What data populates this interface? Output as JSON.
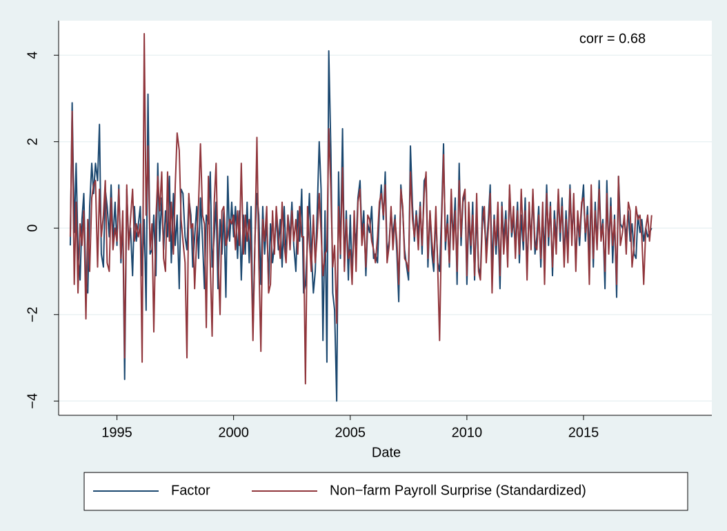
{
  "chart_data": {
    "type": "line",
    "annotation": "corr = 0.68",
    "xlabel": "Date",
    "xlim": [
      1992.5,
      2020.5
    ],
    "ylim": [
      -4.33,
      4.8
    ],
    "xticks": [
      1995,
      2000,
      2005,
      2010,
      2015
    ],
    "yticks": [
      {
        "value": -4,
        "label": "−4"
      },
      {
        "value": -2,
        "label": "−2"
      },
      0,
      2,
      4
    ],
    "grid": true,
    "legend": "bottom",
    "x": [
      1993,
      1993.08,
      1993.17,
      1993.25,
      1993.33,
      1993.42,
      1993.5,
      1993.58,
      1993.67,
      1993.75,
      1993.83,
      1993.92,
      1994,
      1994.08,
      1994.17,
      1994.25,
      1994.33,
      1994.42,
      1994.5,
      1994.58,
      1994.67,
      1994.75,
      1994.83,
      1994.92,
      1995,
      1995.08,
      1995.17,
      1995.25,
      1995.33,
      1995.42,
      1995.5,
      1995.58,
      1995.67,
      1995.75,
      1995.83,
      1995.92,
      1996,
      1996.08,
      1996.17,
      1996.25,
      1996.33,
      1996.42,
      1996.5,
      1996.58,
      1996.67,
      1996.75,
      1996.83,
      1996.92,
      1997,
      1997.08,
      1997.17,
      1997.25,
      1997.33,
      1997.42,
      1997.5,
      1997.58,
      1997.67,
      1997.75,
      1997.83,
      1997.92,
      1998,
      1998.08,
      1998.17,
      1998.25,
      1998.33,
      1998.42,
      1998.5,
      1998.58,
      1998.67,
      1998.75,
      1998.83,
      1998.92,
      1999,
      1999.08,
      1999.17,
      1999.25,
      1999.33,
      1999.42,
      1999.5,
      1999.58,
      1999.67,
      1999.75,
      1999.83,
      1999.92,
      2000,
      2000.08,
      2000.17,
      2000.25,
      2000.33,
      2000.42,
      2000.5,
      2000.58,
      2000.67,
      2000.75,
      2000.83,
      2000.92,
      2001,
      2001.08,
      2001.17,
      2001.25,
      2001.33,
      2001.42,
      2001.5,
      2001.58,
      2001.67,
      2001.75,
      2001.83,
      2001.92,
      2002,
      2002.08,
      2002.17,
      2002.25,
      2002.33,
      2002.42,
      2002.5,
      2002.58,
      2002.67,
      2002.75,
      2002.83,
      2002.92,
      2003,
      2003.08,
      2003.17,
      2003.25,
      2003.33,
      2003.42,
      2003.5,
      2003.58,
      2003.67,
      2003.75,
      2003.83,
      2003.92,
      2004,
      2004.08,
      2004.17,
      2004.25,
      2004.33,
      2004.42,
      2004.5,
      2004.58,
      2004.67,
      2004.75,
      2004.83,
      2004.92,
      2005,
      2005.08,
      2005.17,
      2005.25,
      2005.33,
      2005.42,
      2005.5,
      2005.58,
      2005.67,
      2005.75,
      2005.83,
      2005.92,
      2006,
      2006.08,
      2006.17,
      2006.25,
      2006.33,
      2006.42,
      2006.5,
      2006.58,
      2006.67,
      2006.75,
      2006.83,
      2006.92,
      2007,
      2007.08,
      2007.17,
      2007.25,
      2007.33,
      2007.42,
      2007.5,
      2007.58,
      2007.67,
      2007.75,
      2007.83,
      2007.92,
      2008,
      2008.08,
      2008.17,
      2008.25,
      2008.33,
      2008.42,
      2008.5,
      2008.58,
      2008.67,
      2008.75,
      2008.83,
      2008.92,
      2009,
      2009.08,
      2009.17,
      2009.25,
      2009.33,
      2009.42,
      2009.5,
      2009.58,
      2009.67,
      2009.75,
      2009.83,
      2009.92,
      2010,
      2010.08,
      2010.17,
      2010.25,
      2010.33,
      2010.42,
      2010.5,
      2010.58,
      2010.67,
      2010.75,
      2010.83,
      2010.92,
      2011,
      2011.08,
      2011.17,
      2011.25,
      2011.33,
      2011.42,
      2011.5,
      2011.58,
      2011.67,
      2011.75,
      2011.83,
      2011.92,
      2012,
      2012.08,
      2012.17,
      2012.25,
      2012.33,
      2012.42,
      2012.5,
      2012.58,
      2012.67,
      2012.75,
      2012.83,
      2012.92,
      2013,
      2013.08,
      2013.17,
      2013.25,
      2013.33,
      2013.42,
      2013.5,
      2013.58,
      2013.67,
      2013.75,
      2013.83,
      2013.92,
      2014,
      2014.08,
      2014.17,
      2014.25,
      2014.33,
      2014.42,
      2014.5,
      2014.58,
      2014.67,
      2014.75,
      2014.83,
      2014.92,
      2015,
      2015.08,
      2015.17,
      2015.25,
      2015.33,
      2015.42,
      2015.5,
      2015.58,
      2015.67,
      2015.75,
      2015.83,
      2015.92,
      2016,
      2016.08,
      2016.17,
      2016.25,
      2016.33,
      2016.42,
      2016.5,
      2016.58,
      2016.67,
      2016.75,
      2016.83,
      2016.92,
      2017,
      2017.08,
      2017.17,
      2017.25,
      2017.33,
      2017.42,
      2017.5,
      2017.58,
      2017.67,
      2017.75,
      2017.83,
      2017.92
    ],
    "series": [
      {
        "name": "Factor",
        "color": "#1a476f",
        "values": [
          -0.4,
          2.9,
          -0.1,
          1.5,
          -0.5,
          -1.2,
          0.2,
          0.8,
          -1.4,
          -1.5,
          0.5,
          1.5,
          0.8,
          1.5,
          1.1,
          2.4,
          -0.6,
          -0.9,
          0.9,
          0.5,
          -0.2,
          1.0,
          -0.3,
          0.6,
          -0.4,
          1.0,
          -0.8,
          0.2,
          -3.5,
          0.9,
          -0.3,
          0.0,
          -1.1,
          0.5,
          -0.3,
          0.1,
          0.5,
          -1.1,
          0.2,
          -1.9,
          3.1,
          -0.6,
          -0.5,
          0.3,
          -1.1,
          1.5,
          -0.3,
          0.7,
          -0.5,
          0.4,
          -0.2,
          1.2,
          -0.8,
          0.8,
          -0.4,
          0.3,
          -1.4,
          0.9,
          0.8,
          -0.2,
          -0.5,
          0.7,
          0.3,
          -0.9,
          -0.2,
          0.5,
          -0.7,
          0.7,
          -0.3,
          -1.4,
          0.3,
          0.1,
          1.3,
          -0.9,
          -0.2,
          0.6,
          -1.4,
          0.2,
          -0.6,
          0.4,
          -1.6,
          1.2,
          -0.3,
          0.6,
          -0.2,
          0.5,
          -0.7,
          0.4,
          -1.2,
          0.3,
          -0.6,
          0.6,
          -0.8,
          0.5,
          -2.4,
          -0.2,
          0.8,
          0.3,
          -1.3,
          0.5,
          -0.6,
          0.2,
          -1.3,
          0.1,
          -0.8,
          -0.4,
          0.3,
          -0.5,
          0.2,
          -0.9,
          0.5,
          -0.7,
          0.3,
          -0.2,
          0.6,
          -0.4,
          -1.0,
          0.4,
          -0.3,
          0.9,
          -1.5,
          -1.3,
          -0.3,
          0.8,
          -0.5,
          -1.5,
          -1.0,
          0.3,
          2.0,
          0.9,
          -2.6,
          0.4,
          -3.1,
          4.1,
          1.8,
          -1.5,
          -1.9,
          -4.0,
          1.3,
          -0.7,
          2.3,
          -0.9,
          0.4,
          -1.2,
          0.3,
          -1.1,
          0.1,
          -0.4,
          0.7,
          1.1,
          -0.2,
          0.4,
          -1.1,
          0.1,
          -0.1,
          0.5,
          -0.7,
          -0.6,
          -0.8,
          0.4,
          1.0,
          0.2,
          1.3,
          -0.6,
          -0.3,
          0.4,
          -0.2,
          0.3,
          -0.6,
          -1.7,
          1.0,
          0.4,
          -0.5,
          -0.9,
          -1.2,
          1.9,
          0.5,
          -0.3,
          0.4,
          -0.2,
          0.6,
          -0.6,
          1.1,
          1.2,
          -0.9,
          0.4,
          -0.6,
          -1.0,
          0.3,
          -0.8,
          -1.0,
          0.4,
          1.95,
          -0.5,
          0.3,
          -0.9,
          0.5,
          -0.2,
          0.7,
          -1.3,
          1.5,
          -0.4,
          0.6,
          0.8,
          -1.3,
          0.3,
          -0.6,
          0.6,
          -1.2,
          0.4,
          -0.9,
          -1.1,
          0.5,
          0.1,
          -0.5,
          0.2,
          1.0,
          -0.9,
          0.3,
          -0.6,
          0.2,
          -1.4,
          0.6,
          -0.3,
          0.4,
          -0.7,
          0.9,
          -0.2,
          0.2,
          -0.4,
          0.6,
          -0.8,
          0.3,
          -0.5,
          0.7,
          -1.0,
          0.5,
          -0.3,
          0.8,
          -0.6,
          -0.2,
          0.5,
          -0.9,
          0.3,
          -0.6,
          1.0,
          -0.4,
          0.6,
          -1.1,
          0.4,
          -0.3,
          0.8,
          -0.3,
          0.7,
          -0.7,
          0.4,
          -0.5,
          1.0,
          -0.2,
          0.6,
          -0.8,
          0.3,
          -0.4,
          0.5,
          1.0,
          -0.3,
          0.5,
          -0.6,
          0.8,
          -0.9,
          0.6,
          -0.4,
          1.1,
          -0.2,
          0.2,
          -1.4,
          1.1,
          -0.5,
          0.7,
          -0.8,
          0.3,
          -1.6,
          1.2,
          0.1,
          0.0,
          0.2,
          -0.2,
          0.4,
          -0.3,
          0.1,
          -0.6,
          -0.7,
          0.3,
          -0.1,
          0.2,
          -0.3,
          0.0,
          -0.2,
          -0.1,
          0.0
        ]
      },
      {
        "name": "Non−farm Payroll Surprise (Standardized)",
        "color": "#90353b",
        "values": [
          -0.2,
          2.7,
          -1.3,
          0.6,
          -1.5,
          0.1,
          -0.4,
          0.4,
          -2.1,
          0.2,
          -1.0,
          0.7,
          1.0,
          1.1,
          -0.9,
          0.9,
          -0.2,
          0.3,
          1.1,
          -0.8,
          -1.0,
          0.7,
          -0.5,
          0.0,
          -0.3,
          0.9,
          -0.7,
          0.4,
          -3.0,
          1.0,
          -0.5,
          0.2,
          0.9,
          -0.3,
          0.1,
          -0.2,
          0.1,
          -3.1,
          4.5,
          0.3,
          1.9,
          -0.5,
          0.1,
          -2.4,
          0.2,
          1.2,
          0.4,
          1.3,
          -0.7,
          -1.0,
          1.3,
          -0.3,
          0.6,
          -0.6,
          1.0,
          2.2,
          1.8,
          0.2,
          -0.3,
          -0.8,
          -3.0,
          0.8,
          0.0,
          0.1,
          -1.4,
          -0.2,
          0.6,
          1.95,
          0.3,
          0.1,
          -2.3,
          1.2,
          -0.8,
          -2.5,
          0.6,
          1.5,
          -0.6,
          -2.0,
          0.4,
          0.5,
          -0.4,
          -0.2,
          0.2,
          0.1,
          0.3,
          -0.5,
          0.4,
          -0.4,
          1.5,
          -0.6,
          0.3,
          -0.3,
          0.2,
          -0.5,
          -2.6,
          -0.2,
          2.1,
          -0.7,
          -2.85,
          0.2,
          -0.3,
          0.5,
          -1.5,
          -1.3,
          0.4,
          -0.6,
          0.5,
          -0.2,
          -0.7,
          0.6,
          -0.4,
          -0.8,
          0.3,
          -0.5,
          0.4,
          -0.3,
          0.2,
          -0.6,
          0.5,
          -0.2,
          -0.2,
          -3.6,
          0.5,
          -0.3,
          -1.0,
          0.3,
          -0.8,
          -0.2,
          0.8,
          -0.1,
          -1.1,
          -0.6,
          -0.5,
          2.3,
          0.9,
          -0.9,
          -0.4,
          -2.2,
          0.5,
          -0.6,
          1.4,
          -1.0,
          0.2,
          -0.7,
          -0.5,
          -1.3,
          0.4,
          -1.0,
          0.6,
          0.9,
          -0.4,
          0.1,
          -0.9,
          0.3,
          0.2,
          -0.3,
          -0.5,
          -0.8,
          -0.2,
          0.6,
          0.8,
          0.3,
          1.0,
          -0.8,
          -0.4,
          0.5,
          -0.5,
          0.2,
          -0.3,
          -1.3,
          0.9,
          0.5,
          -0.7,
          -0.8,
          -1.0,
          1.3,
          0.2,
          -0.2,
          0.3,
          -0.5,
          0.5,
          -0.4,
          0.8,
          1.3,
          -0.7,
          0.4,
          -0.3,
          -0.8,
          0.5,
          -0.9,
          -2.6,
          0.2,
          1.7,
          -0.3,
          0.1,
          -0.8,
          0.9,
          -0.5,
          0.4,
          -1.0,
          1.1,
          -0.2,
          0.7,
          0.9,
          -1.1,
          0.6,
          -0.4,
          0.3,
          -1.1,
          0.8,
          -1.0,
          -1.2,
          0.2,
          0.5,
          -0.8,
          0.0,
          0.8,
          -1.5,
          0.2,
          -0.4,
          0.6,
          -1.1,
          0.5,
          -0.6,
          0.2,
          -0.9,
          1.0,
          -0.1,
          0.5,
          -0.7,
          0.4,
          -0.6,
          0.9,
          -0.3,
          0.4,
          -1.2,
          0.6,
          -0.5,
          0.9,
          -0.4,
          -0.5,
          0.3,
          -0.7,
          0.6,
          -1.3,
          0.8,
          -0.2,
          0.5,
          -0.9,
          0.2,
          -0.6,
          0.9,
          -0.1,
          0.5,
          -0.9,
          0.2,
          -0.8,
          0.9,
          -0.4,
          0.8,
          -1.0,
          0.4,
          -0.2,
          0.6,
          0.7,
          -0.1,
          0.3,
          -1.3,
          1.0,
          -0.7,
          0.4,
          -0.5,
          0.9,
          -0.3,
          0.1,
          -1.0,
          0.8,
          -0.6,
          0.5,
          -0.4,
          0.2,
          -1.3,
          1.2,
          -0.4,
          -0.1,
          0.3,
          -0.6,
          0.6,
          0.4,
          -0.9,
          -0.4,
          0.5,
          0.2,
          0.3,
          -0.2,
          -1.3,
          0.0,
          0.3,
          -0.3,
          0.3
        ]
      }
    ]
  }
}
